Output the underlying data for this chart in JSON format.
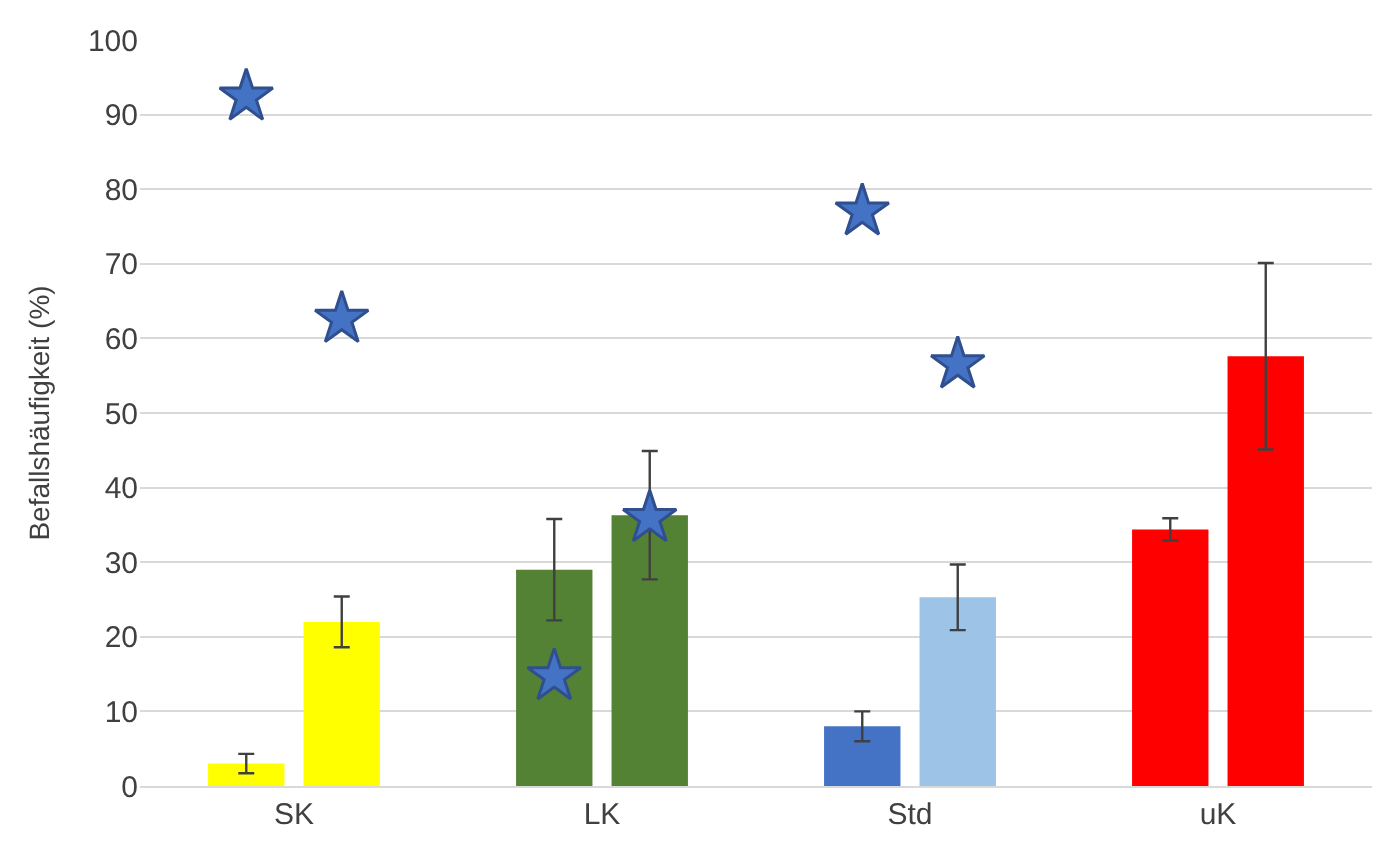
{
  "chart_data": {
    "type": "bar",
    "ylabel": "Befallshäufigkeit (%)",
    "categories": [
      "SK",
      "LK",
      "Std",
      "uK"
    ],
    "series": [
      {
        "colors": [
          "#ffff00",
          "#548235",
          "#4472c4",
          "#ff0000"
        ],
        "values": [
          3,
          29,
          8,
          34.4
        ],
        "errors": [
          1.3,
          6.8,
          2,
          1.5
        ]
      },
      {
        "colors": [
          "#ffff00",
          "#548235",
          "#9dc3e6",
          "#ff0000"
        ],
        "values": [
          22,
          36.3,
          25.3,
          57.6
        ],
        "errors": [
          3.4,
          8.6,
          4.4,
          12.5
        ]
      },
      {
        "type": "scatter",
        "color": "#4472c4",
        "values": [
          92.4,
          14.7,
          77,
          null
        ]
      },
      {
        "type": "scatter",
        "color": "#4472c4",
        "values": [
          62.6,
          35.9,
          56.5,
          null
        ]
      }
    ],
    "marker": "star",
    "ylim": [
      0,
      100
    ],
    "yticks": [
      0,
      10,
      20,
      30,
      40,
      50,
      60,
      70,
      80,
      90,
      100
    ],
    "grid": "y"
  }
}
